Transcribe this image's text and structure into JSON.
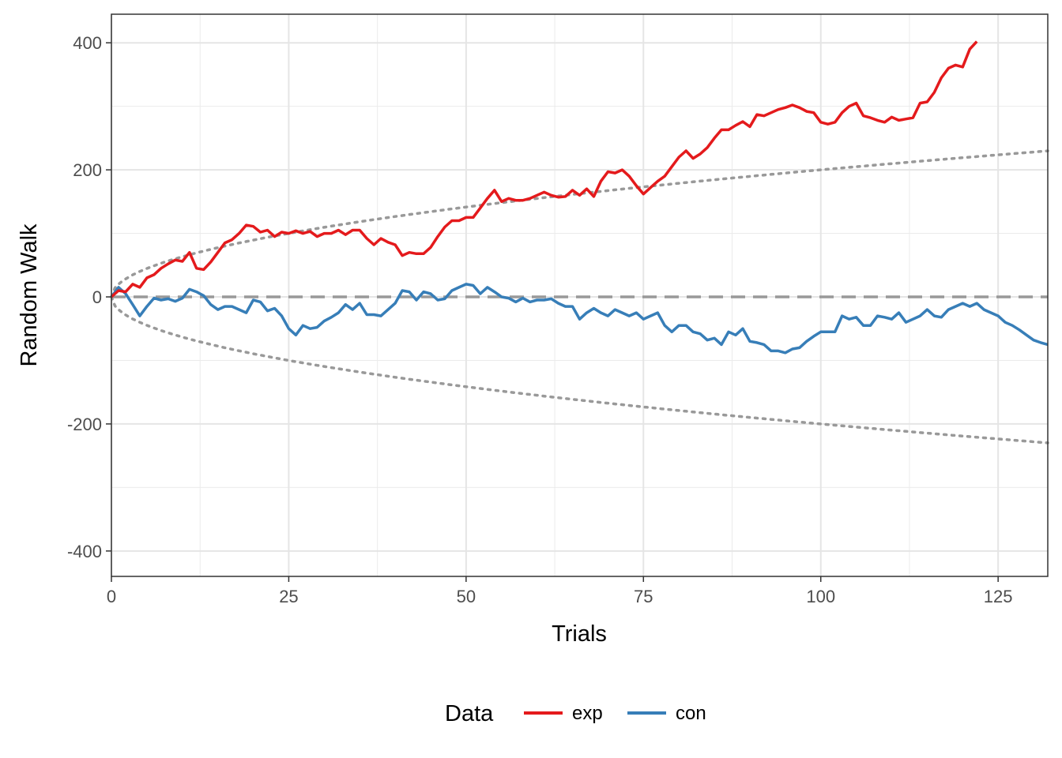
{
  "chart_data": {
    "type": "line",
    "xlabel": "Trials",
    "ylabel": "Random Walk",
    "xlim": [
      0,
      132
    ],
    "ylim": [
      -440,
      445
    ],
    "x_ticks": [
      0,
      25,
      50,
      75,
      100,
      125
    ],
    "y_ticks": [
      -400,
      -200,
      0,
      200,
      400
    ],
    "grid": true,
    "legend": {
      "title": "Data",
      "position": "bottom",
      "entries": [
        {
          "label": "exp",
          "color": "#e41a1c"
        },
        {
          "label": "con",
          "color": "#377eb8"
        }
      ]
    },
    "reference_lines": {
      "zero": {
        "y": 0,
        "style": "dashed",
        "color": "#999999"
      },
      "bounds": {
        "formula": "±20*sqrt(x)",
        "style": "dotted",
        "color": "#999999"
      }
    },
    "series": [
      {
        "name": "exp",
        "color": "#e41a1c",
        "x": [
          0,
          1,
          2,
          3,
          4,
          5,
          6,
          7,
          8,
          9,
          10,
          11,
          12,
          13,
          14,
          15,
          16,
          17,
          18,
          19,
          20,
          21,
          22,
          23,
          24,
          25,
          26,
          27,
          28,
          29,
          30,
          31,
          32,
          33,
          34,
          35,
          36,
          37,
          38,
          39,
          40,
          41,
          42,
          43,
          44,
          45,
          46,
          47,
          48,
          49,
          50,
          51,
          52,
          53,
          54,
          55,
          56,
          57,
          58,
          59,
          60,
          61,
          62,
          63,
          64,
          65,
          66,
          67,
          68,
          69,
          70,
          71,
          72,
          73,
          74,
          75,
          76,
          77,
          78,
          79,
          80,
          81,
          82,
          83,
          84,
          85,
          86,
          87,
          88,
          89,
          90,
          91,
          92,
          93,
          94,
          95,
          96,
          97,
          98,
          99,
          100,
          101,
          102,
          103,
          104,
          105,
          106,
          107,
          108,
          109,
          110,
          111,
          112,
          113,
          114,
          115,
          116,
          117,
          118,
          119,
          120,
          121,
          122
        ],
        "values": [
          0,
          10,
          8,
          20,
          15,
          30,
          35,
          45,
          52,
          58,
          56,
          70,
          45,
          43,
          55,
          70,
          85,
          90,
          100,
          113,
          111,
          102,
          105,
          95,
          102,
          100,
          104,
          100,
          103,
          95,
          100,
          100,
          105,
          98,
          105,
          105,
          92,
          82,
          92,
          86,
          82,
          65,
          70,
          68,
          68,
          78,
          95,
          110,
          120,
          120,
          125,
          125,
          140,
          155,
          168,
          150,
          155,
          152,
          152,
          155,
          160,
          165,
          160,
          157,
          158,
          168,
          160,
          170,
          158,
          182,
          197,
          195,
          200,
          190,
          175,
          162,
          172,
          182,
          190,
          205,
          220,
          230,
          218,
          225,
          235,
          250,
          263,
          263,
          270,
          276,
          268,
          287,
          285,
          290,
          295,
          298,
          302,
          298,
          292,
          290,
          275,
          272,
          275,
          290,
          300,
          305,
          285,
          282,
          278,
          275,
          283,
          278,
          280,
          282,
          305,
          307,
          322,
          345,
          360,
          365,
          362,
          390,
          402
        ]
      },
      {
        "name": "con",
        "color": "#377eb8",
        "x": [
          0,
          1,
          2,
          3,
          4,
          5,
          6,
          7,
          8,
          9,
          10,
          11,
          12,
          13,
          14,
          15,
          16,
          17,
          18,
          19,
          20,
          21,
          22,
          23,
          24,
          25,
          26,
          27,
          28,
          29,
          30,
          31,
          32,
          33,
          34,
          35,
          36,
          37,
          38,
          39,
          40,
          41,
          42,
          43,
          44,
          45,
          46,
          47,
          48,
          49,
          50,
          51,
          52,
          53,
          54,
          55,
          56,
          57,
          58,
          59,
          60,
          61,
          62,
          63,
          64,
          65,
          66,
          67,
          68,
          69,
          70,
          71,
          72,
          73,
          74,
          75,
          76,
          77,
          78,
          79,
          80,
          81,
          82,
          83,
          84,
          85,
          86,
          87,
          88,
          89,
          90,
          91,
          92,
          93,
          94,
          95,
          96,
          97,
          98,
          99,
          100,
          101,
          102,
          103,
          104,
          105,
          106,
          107,
          108,
          109,
          110,
          111,
          112,
          113,
          114,
          115,
          116,
          117,
          118,
          119,
          120,
          121,
          122,
          123,
          124,
          125,
          126,
          127,
          128,
          129,
          130,
          131,
          132
        ],
        "values": [
          0,
          15,
          5,
          -12,
          -30,
          -15,
          -2,
          -5,
          -3,
          -7,
          -2,
          12,
          8,
          2,
          -12,
          -20,
          -15,
          -15,
          -20,
          -25,
          -5,
          -8,
          -22,
          -18,
          -30,
          -50,
          -60,
          -45,
          -50,
          -48,
          -38,
          -32,
          -25,
          -12,
          -20,
          -10,
          -28,
          -28,
          -30,
          -20,
          -10,
          10,
          8,
          -5,
          8,
          5,
          -5,
          -3,
          10,
          15,
          20,
          18,
          5,
          15,
          8,
          0,
          -2,
          -8,
          -2,
          -8,
          -5,
          -5,
          -3,
          -10,
          -15,
          -15,
          -35,
          -25,
          -18,
          -25,
          -30,
          -20,
          -25,
          -30,
          -25,
          -35,
          -30,
          -25,
          -45,
          -55,
          -45,
          -45,
          -55,
          -58,
          -68,
          -65,
          -75,
          -55,
          -60,
          -50,
          -70,
          -72,
          -75,
          -85,
          -85,
          -88,
          -82,
          -80,
          -70,
          -62,
          -55,
          -55,
          -55,
          -30,
          -35,
          -32,
          -45,
          -45,
          -30,
          -32,
          -35,
          -25,
          -40,
          -35,
          -30,
          -20,
          -30,
          -32,
          -20,
          -15,
          -10,
          -15,
          -10,
          -20,
          -25,
          -30,
          -40,
          -45,
          -52,
          -60,
          -68,
          -72,
          -75
        ]
      }
    ]
  }
}
